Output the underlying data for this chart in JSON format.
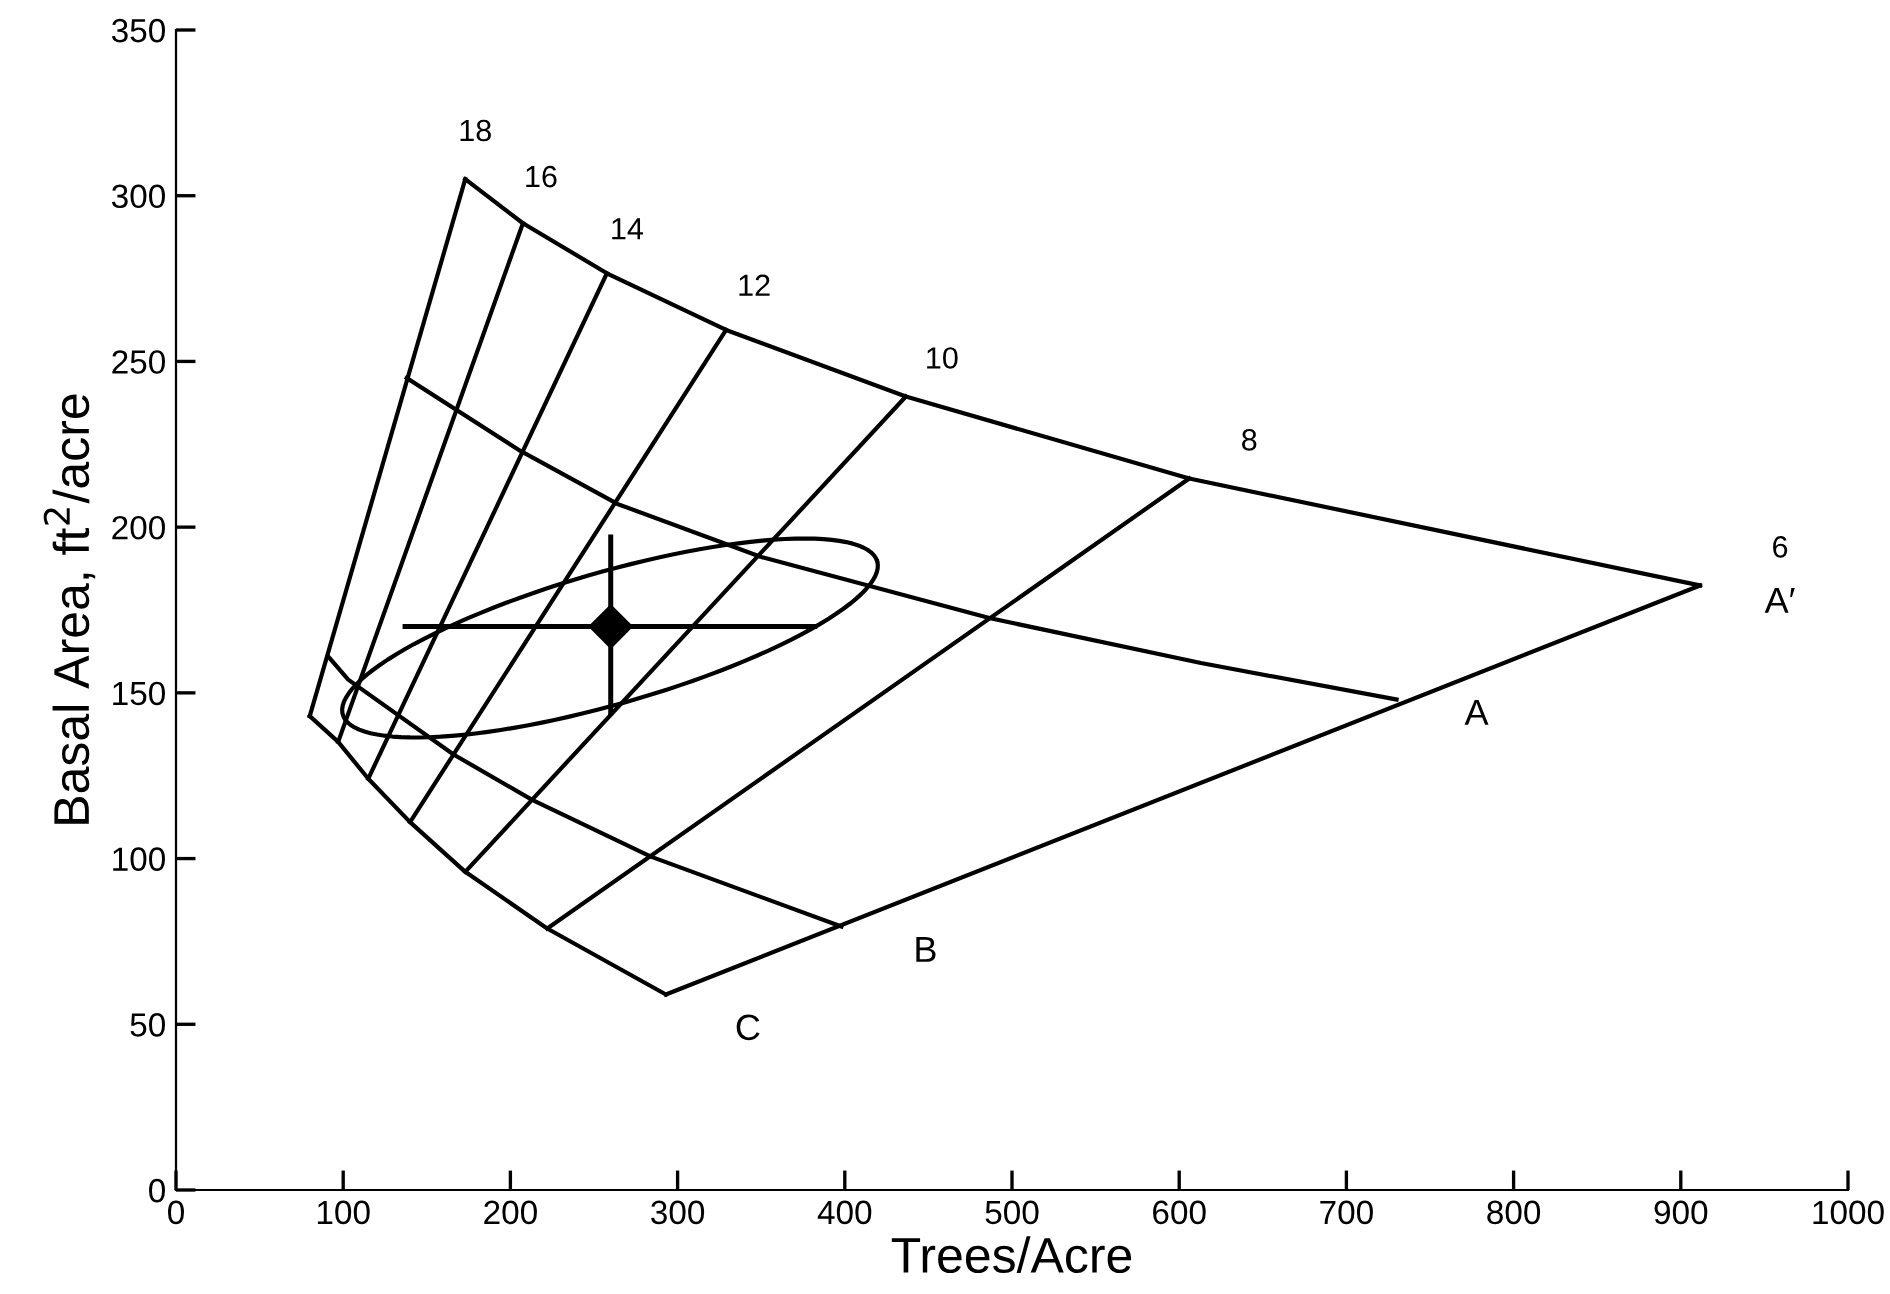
{
  "chart_data": {
    "type": "line",
    "xlabel": "Trees/Acre",
    "ylabel": "Basal Area, ft$^{2}$/acre",
    "xlim": [
      0,
      1000
    ],
    "ylim": [
      0,
      350
    ],
    "xticks": [
      0,
      100,
      200,
      300,
      400,
      500,
      600,
      700,
      800,
      900,
      1000
    ],
    "yticks": [
      0,
      50,
      100,
      150,
      200,
      250,
      300,
      350
    ],
    "grid": false,
    "marker": "none",
    "line_style": "solid",
    "series": [
      {
        "color": "#000000",
        "x": [
          173,
          207.5,
          257.7,
          329,
          436.5,
          606,
          911.5
        ],
        "values": [
          305,
          291.7,
          276.6,
          259.5,
          239.4,
          214.7,
          182.4
        ]
      },
      {
        "color": "#000000",
        "x": [
          173,
          80
        ],
        "values": [
          305,
          143
        ]
      },
      {
        "color": "#000000",
        "x": [
          80,
          97,
          115,
          140,
          173,
          222,
          293
        ],
        "values": [
          143,
          135.2,
          124.1,
          111,
          96,
          78.9,
          59
        ]
      },
      {
        "color": "#000000",
        "x": [
          207.5,
          97
        ],
        "values": [
          291.7,
          135.2
        ]
      },
      {
        "color": "#000000",
        "x": [
          257.7,
          115
        ],
        "values": [
          276.6,
          124.1
        ]
      },
      {
        "color": "#000000",
        "x": [
          329,
          140
        ],
        "values": [
          259.5,
          111
        ]
      },
      {
        "color": "#000000",
        "x": [
          436.5,
          173
        ],
        "values": [
          239.4,
          96
        ]
      },
      {
        "color": "#000000",
        "x": [
          606,
          222
        ],
        "values": [
          214.7,
          78.9
        ]
      },
      {
        "color": "#000000",
        "x": [
          911.5,
          293
        ],
        "values": [
          182.4,
          59
        ]
      },
      {
        "color": "#000000",
        "x": [
          138,
          206,
          264,
          350,
          487,
          613,
          730
        ],
        "values": [
          245,
          223,
          207,
          191,
          172.5,
          159,
          148
        ]
      },
      {
        "color": "#000000",
        "x": [
          91,
          103,
          166,
          213,
          284,
          398
        ],
        "values": [
          161,
          154,
          131.4,
          117.7,
          100.6,
          79.5
        ]
      },
      {
        "type": "scatter",
        "marker": "diamond",
        "color": "#000000",
        "x": [
          260
        ],
        "values": [
          170
        ],
        "errors": [
          [
            144,
            197
          ]
        ],
        "xerrors": [
          [
            137,
            382
          ]
        ]
      }
    ],
    "annotations": [
      {
        "text": "18",
        "x": 173,
        "y": 305
      },
      {
        "text": "16",
        "x": 207.5,
        "y": 291.7
      },
      {
        "text": "14",
        "x": 257.7,
        "y": 276.6
      },
      {
        "text": "12",
        "x": 329,
        "y": 259.5
      },
      {
        "text": "10",
        "x": 436.5,
        "y": 239.4
      },
      {
        "text": "8",
        "x": 606,
        "y": 214.7
      },
      {
        "text": "6",
        "x": 911.5,
        "y": 182.4
      },
      {
        "text": "A′",
        "x": 911.5,
        "y": 182.4
      },
      {
        "text": "A",
        "x": 730,
        "y": 148
      },
      {
        "text": "B",
        "x": 398,
        "y": 79.5
      },
      {
        "text": "C",
        "x": 293,
        "y": 59
      }
    ]
  }
}
